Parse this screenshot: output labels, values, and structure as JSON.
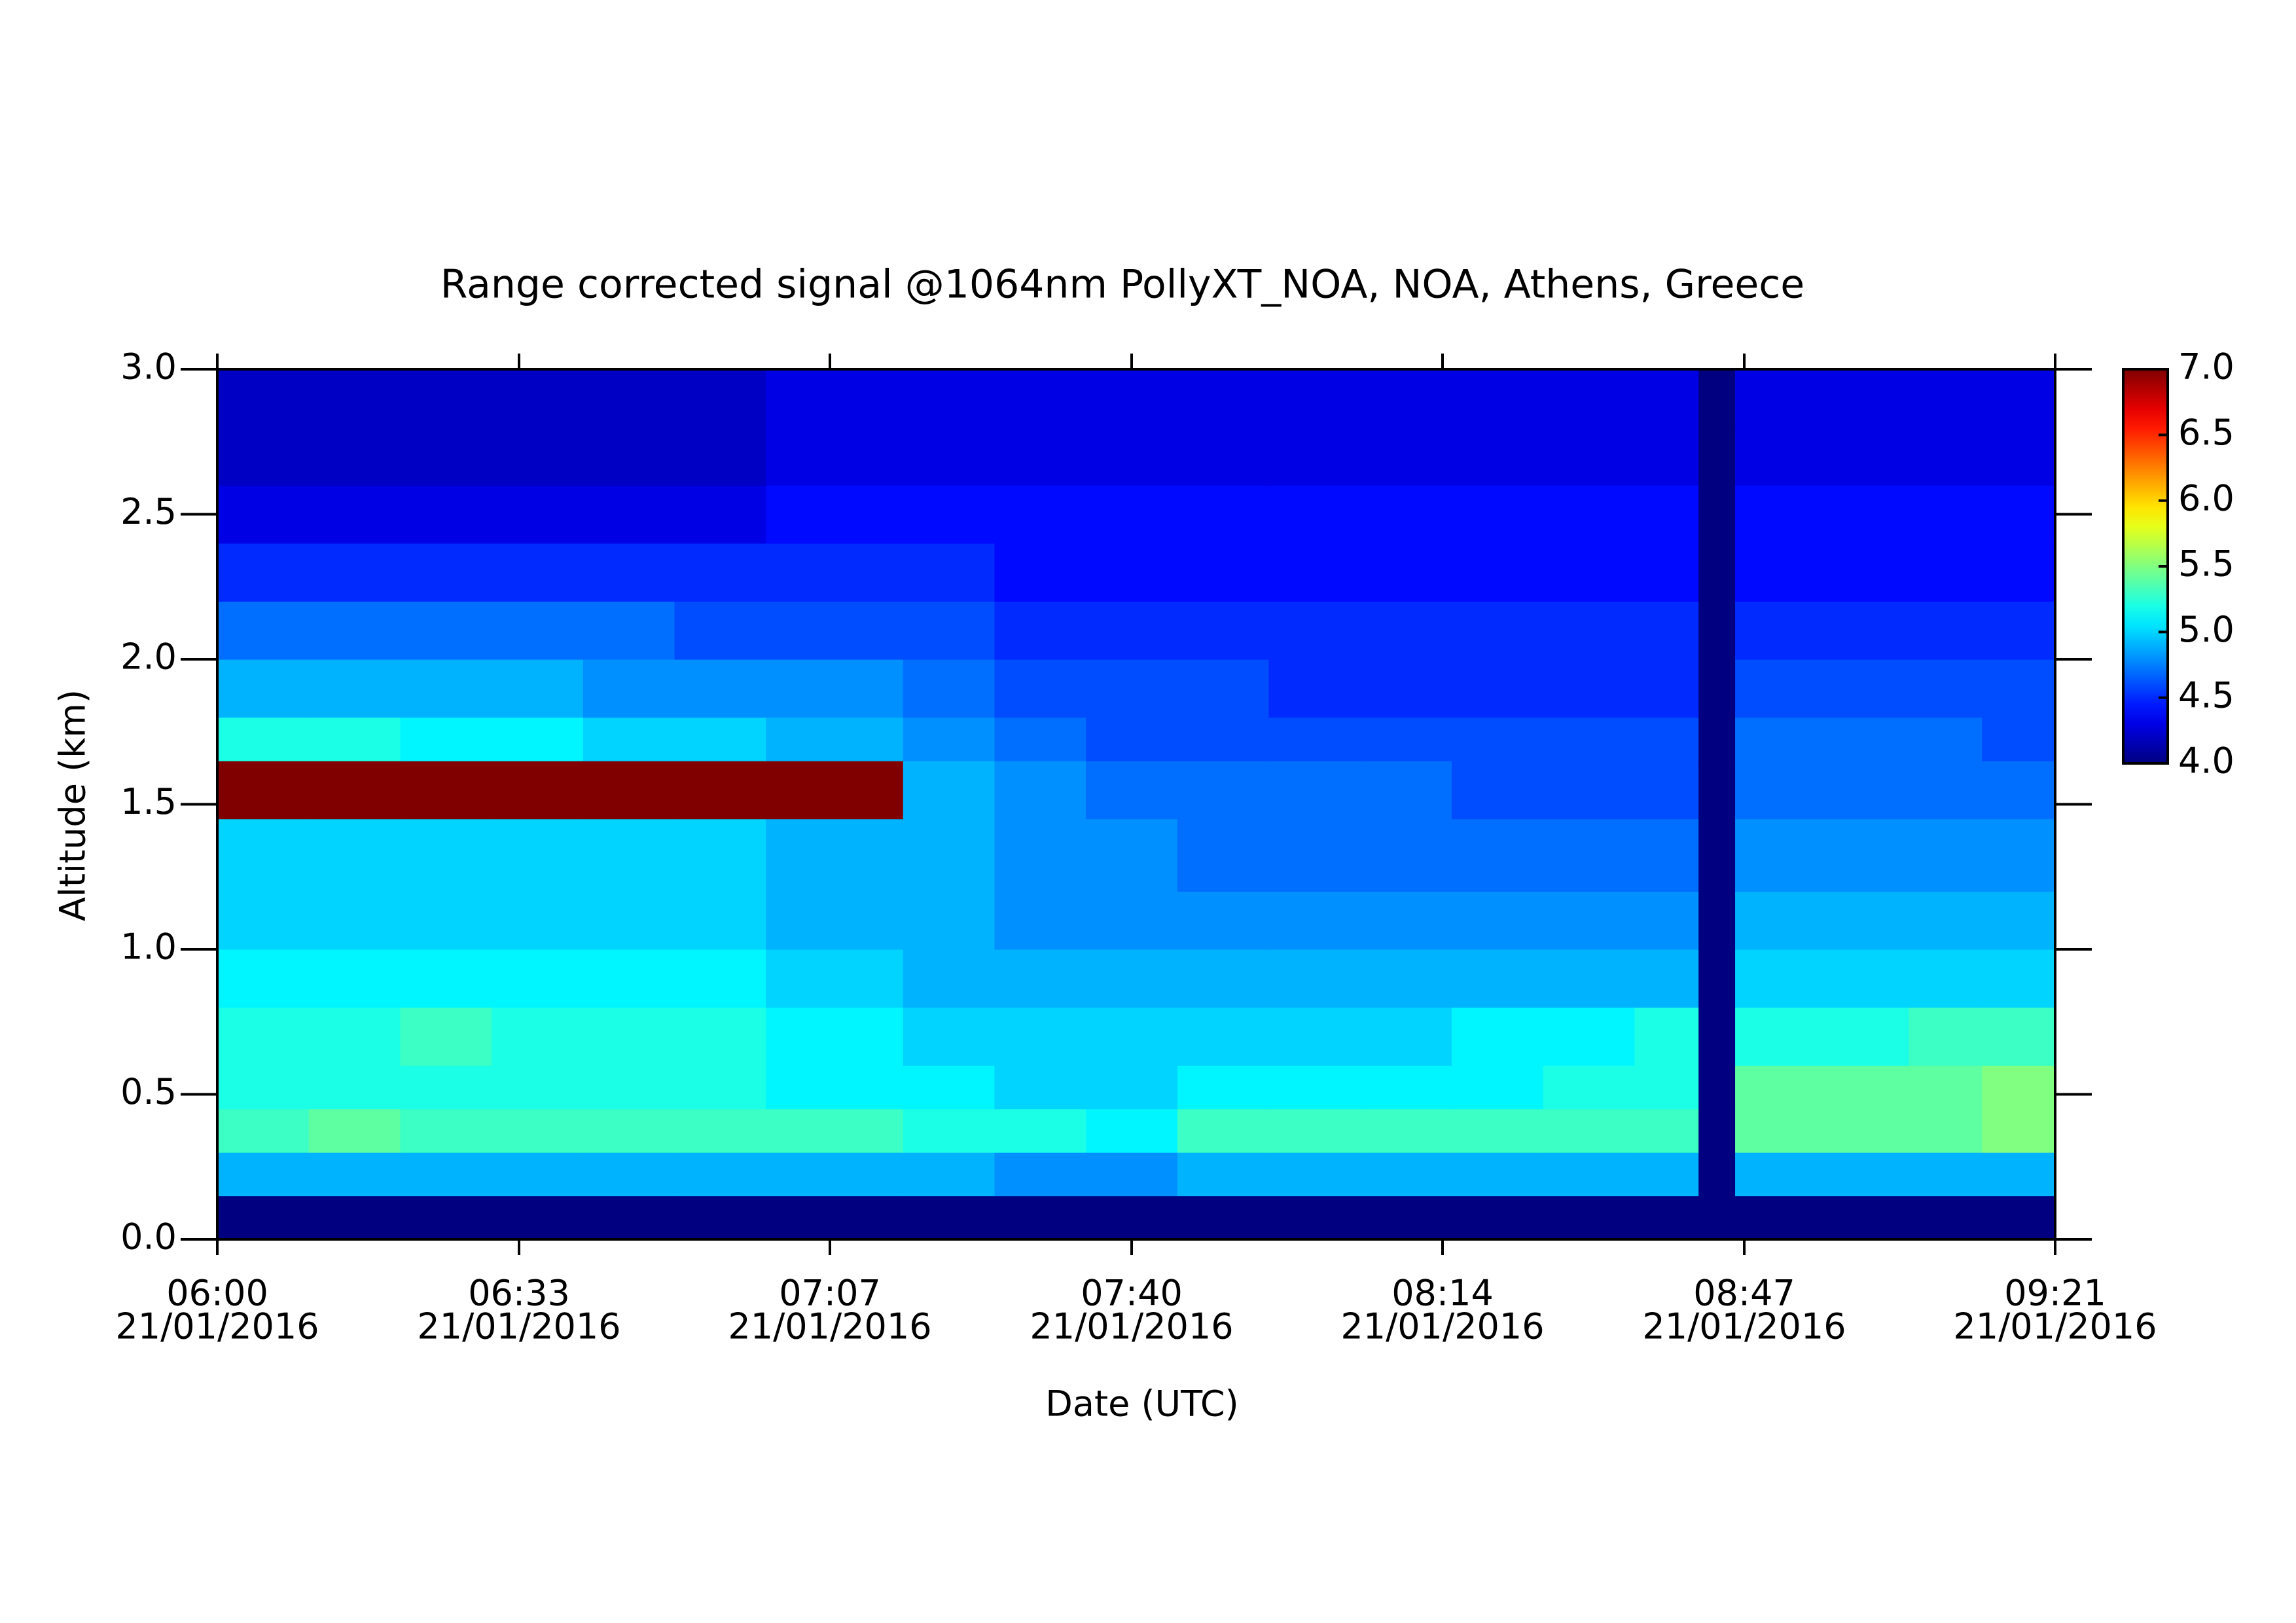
{
  "chart_data": {
    "type": "heatmap",
    "title": "Range corrected signal @1064nm  PollyXT_NOA, NOA, Athens, Greece",
    "x_label": "Date (UTC)",
    "y_label": "Altitude (km)",
    "colormap": "jet",
    "x": [
      "06:00",
      "06:10",
      "06:20",
      "06:30",
      "06:40",
      "06:50",
      "07:00",
      "07:15",
      "07:25",
      "07:35",
      "07:45",
      "07:55",
      "08:05",
      "08:15",
      "08:25",
      "08:35",
      "08:42",
      "08:46",
      "08:55",
      "09:05",
      "09:13",
      "09:21"
    ],
    "y": [
      0,
      0.15,
      0.3,
      0.45,
      0.6,
      0.8,
      1.0,
      1.2,
      1.45,
      1.65,
      1.8,
      2.0,
      2.2,
      2.4,
      2.6,
      2.8,
      3.0
    ],
    "values": [
      [
        4.0,
        4.0,
        4.0,
        4.0,
        4.0,
        4.0,
        4.0,
        4.0,
        4.0,
        4.0,
        4.0,
        4.0,
        4.0,
        4.0,
        4.0,
        4.0,
        4.0,
        4.0,
        4.0,
        4.0,
        4.0
      ],
      [
        4.9,
        4.9,
        4.9,
        4.9,
        4.9,
        4.9,
        4.9,
        4.9,
        4.8,
        4.8,
        4.9,
        4.9,
        4.9,
        4.9,
        4.9,
        4.9,
        4.0,
        4.9,
        4.9,
        4.9,
        4.9
      ],
      [
        5.3,
        5.4,
        5.3,
        5.3,
        5.3,
        5.3,
        5.3,
        5.2,
        5.2,
        5.1,
        5.3,
        5.3,
        5.3,
        5.3,
        5.3,
        5.3,
        4.0,
        5.4,
        5.4,
        5.4,
        5.5
      ],
      [
        5.2,
        5.2,
        5.2,
        5.2,
        5.2,
        5.2,
        5.1,
        5.1,
        5.0,
        5.0,
        5.1,
        5.1,
        5.1,
        5.1,
        5.2,
        5.2,
        4.0,
        5.4,
        5.4,
        5.4,
        5.5
      ],
      [
        5.2,
        5.2,
        5.3,
        5.2,
        5.2,
        5.2,
        5.1,
        5.0,
        5.0,
        5.0,
        5.0,
        5.0,
        5.0,
        5.1,
        5.1,
        5.2,
        4.0,
        5.2,
        5.2,
        5.3,
        5.3
      ],
      [
        5.1,
        5.1,
        5.1,
        5.1,
        5.1,
        5.1,
        5.0,
        4.9,
        4.9,
        4.9,
        4.9,
        4.9,
        4.9,
        4.9,
        4.9,
        4.9,
        4.0,
        5.0,
        5.0,
        5.0,
        5.0
      ],
      [
        5.0,
        5.0,
        5.0,
        5.0,
        5.0,
        5.0,
        4.9,
        4.9,
        4.8,
        4.8,
        4.8,
        4.8,
        4.8,
        4.8,
        4.8,
        4.8,
        4.0,
        4.9,
        4.9,
        4.9,
        4.9
      ],
      [
        5.0,
        5.0,
        5.0,
        5.0,
        5.0,
        5.0,
        4.9,
        4.9,
        4.8,
        4.8,
        4.7,
        4.7,
        4.7,
        4.7,
        4.7,
        4.7,
        4.0,
        4.8,
        4.8,
        4.8,
        4.8
      ],
      [
        7.0,
        7.0,
        7.0,
        7.0,
        7.0,
        7.0,
        7.0,
        4.9,
        4.8,
        4.7,
        4.7,
        4.7,
        4.7,
        4.6,
        4.6,
        4.6,
        4.0,
        4.7,
        4.7,
        4.7,
        4.7
      ],
      [
        5.2,
        5.2,
        5.1,
        5.1,
        5.0,
        5.0,
        4.9,
        4.8,
        4.7,
        4.6,
        4.6,
        4.6,
        4.6,
        4.6,
        4.6,
        4.6,
        4.0,
        4.7,
        4.7,
        4.7,
        4.6
      ],
      [
        4.9,
        4.9,
        4.9,
        4.9,
        4.8,
        4.8,
        4.8,
        4.7,
        4.6,
        4.6,
        4.6,
        4.5,
        4.5,
        4.5,
        4.5,
        4.5,
        4.0,
        4.6,
        4.6,
        4.6,
        4.6
      ],
      [
        4.7,
        4.7,
        4.7,
        4.7,
        4.7,
        4.6,
        4.6,
        4.6,
        4.5,
        4.5,
        4.5,
        4.5,
        4.5,
        4.5,
        4.5,
        4.5,
        4.0,
        4.5,
        4.5,
        4.5,
        4.5
      ],
      [
        4.5,
        4.5,
        4.5,
        4.5,
        4.5,
        4.5,
        4.5,
        4.5,
        4.4,
        4.4,
        4.4,
        4.4,
        4.4,
        4.4,
        4.4,
        4.4,
        4.0,
        4.4,
        4.4,
        4.4,
        4.4
      ],
      [
        4.3,
        4.3,
        4.3,
        4.3,
        4.3,
        4.3,
        4.4,
        4.4,
        4.4,
        4.4,
        4.4,
        4.4,
        4.4,
        4.4,
        4.4,
        4.4,
        4.0,
        4.4,
        4.4,
        4.4,
        4.4
      ],
      [
        4.2,
        4.2,
        4.2,
        4.2,
        4.2,
        4.2,
        4.3,
        4.3,
        4.3,
        4.3,
        4.3,
        4.3,
        4.3,
        4.3,
        4.3,
        4.3,
        4.0,
        4.3,
        4.3,
        4.3,
        4.3
      ],
      [
        4.2,
        4.2,
        4.2,
        4.2,
        4.2,
        4.2,
        4.3,
        4.3,
        4.3,
        4.3,
        4.3,
        4.3,
        4.3,
        4.3,
        4.3,
        4.3,
        4.0,
        4.3,
        4.3,
        4.3,
        4.3
      ]
    ],
    "xlim": [
      "06:00",
      "09:21"
    ],
    "xticks": [
      {
        "value": "06:00",
        "label": [
          "06:00",
          "21/01/2016"
        ]
      },
      {
        "value": "06:33",
        "label": [
          "06:33",
          "21/01/2016"
        ]
      },
      {
        "value": "07:07",
        "label": [
          "07:07",
          "21/01/2016"
        ]
      },
      {
        "value": "07:40",
        "label": [
          "07:40",
          "21/01/2016"
        ]
      },
      {
        "value": "08:14",
        "label": [
          "08:14",
          "21/01/2016"
        ]
      },
      {
        "value": "08:47",
        "label": [
          "08:47",
          "21/01/2016"
        ]
      },
      {
        "value": "09:21",
        "label": [
          "09:21",
          "21/01/2016"
        ]
      }
    ],
    "ylim": [
      0,
      3
    ],
    "yticks": [
      {
        "value": 0,
        "label": "0.0"
      },
      {
        "value": 0.5,
        "label": "0.5"
      },
      {
        "value": 1,
        "label": "1.0"
      },
      {
        "value": 1.5,
        "label": "1.5"
      },
      {
        "value": 2,
        "label": "2.0"
      },
      {
        "value": 2.5,
        "label": "2.5"
      },
      {
        "value": 3,
        "label": "3.0"
      }
    ],
    "clim": [
      4,
      7
    ],
    "cticks": [
      {
        "value": 4,
        "label": "4.0"
      },
      {
        "value": 4.5,
        "label": "4.5"
      },
      {
        "value": 5,
        "label": "5.0"
      },
      {
        "value": 5.5,
        "label": "5.5"
      },
      {
        "value": 6,
        "label": "6.0"
      },
      {
        "value": 6.5,
        "label": "6.5"
      },
      {
        "value": 7,
        "label": "7.0"
      }
    ]
  }
}
